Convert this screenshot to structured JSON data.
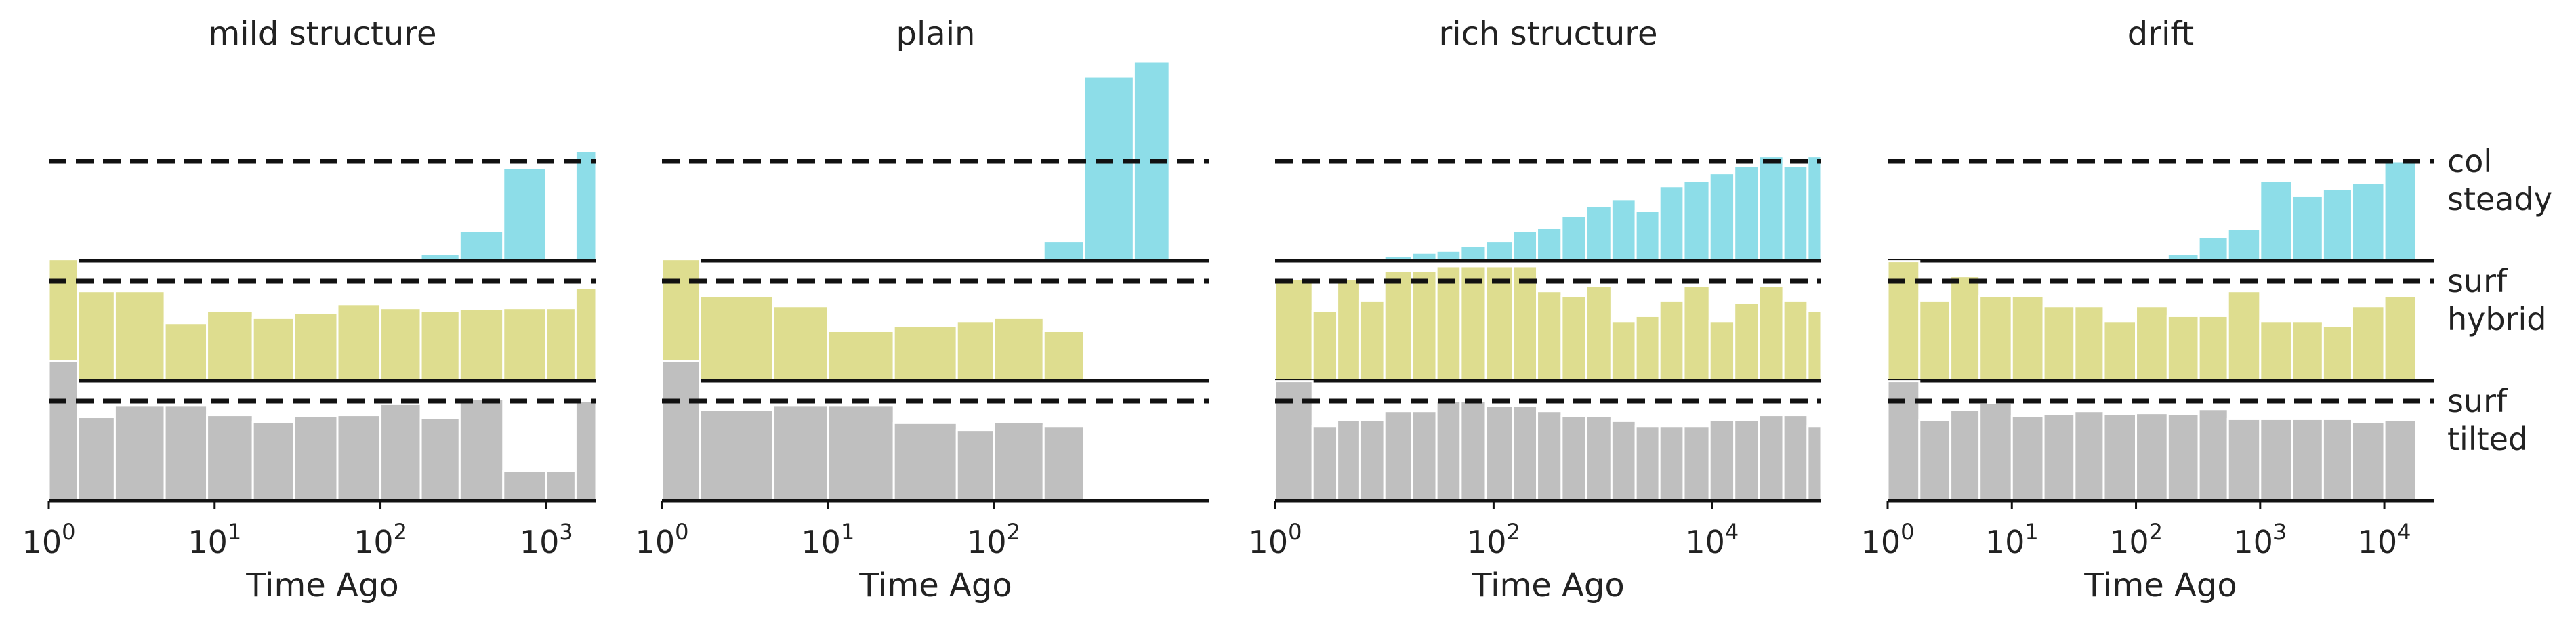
{
  "figure": {
    "row_labels": [
      [
        "col",
        "steady"
      ],
      [
        "surf",
        "hybrid"
      ],
      [
        "surf",
        "tilted"
      ]
    ],
    "colors": {
      "col": "#8ddde8",
      "hybrid": "#dedd8f",
      "tilted": "#bfbfbf",
      "edge": "#ffffff",
      "line": "#111111"
    }
  },
  "chart_data": [
    {
      "type": "area",
      "title": "mild structure",
      "xlabel": "Time Ago",
      "xscale": "log",
      "xlim": [
        1,
        2000
      ],
      "xticks": [
        {
          "base": "10",
          "exp": "0"
        },
        {
          "base": "10",
          "exp": "1"
        },
        {
          "base": "10",
          "exp": "2"
        },
        {
          "base": "10",
          "exp": "3"
        }
      ],
      "grid": false,
      "reference_level": 1.0,
      "edges": [
        1,
        1.5,
        2.5,
        5,
        9,
        17,
        30,
        55,
        100,
        175,
        300,
        550,
        1000,
        1500,
        2000
      ],
      "series": [
        {
          "key": "col",
          "values": [
            null,
            null,
            null,
            null,
            null,
            null,
            null,
            null,
            0.02,
            0.07,
            0.3,
            0.93,
            null,
            1.1
          ]
        },
        {
          "key": "hybrid",
          "values": [
            1.22,
            0.9,
            0.9,
            0.58,
            0.7,
            0.63,
            0.68,
            0.77,
            0.73,
            0.7,
            0.72,
            0.73,
            0.73,
            0.93
          ]
        },
        {
          "key": "tilted",
          "values": [
            1.4,
            0.84,
            0.96,
            0.96,
            0.86,
            0.79,
            0.85,
            0.86,
            0.97,
            0.83,
            1.02,
            0.3,
            0.3,
            1.0
          ]
        }
      ]
    },
    {
      "type": "area",
      "title": "plain",
      "xlabel": "Time Ago",
      "xscale": "log",
      "xlim": [
        1,
        2000
      ],
      "xticks": [
        {
          "base": "10",
          "exp": "0"
        },
        {
          "base": "10",
          "exp": "1"
        },
        {
          "base": "10",
          "exp": "2"
        }
      ],
      "grid": false,
      "reference_level": 1.0,
      "edges": [
        1,
        1.7,
        4.7,
        10,
        25,
        60,
        100,
        200,
        350,
        700,
        1150
      ],
      "series": [
        {
          "key": "col",
          "values": [
            null,
            null,
            null,
            null,
            null,
            null,
            null,
            0.2,
            1.85,
            2.0
          ]
        },
        {
          "key": "hybrid",
          "values": [
            1.22,
            0.85,
            0.75,
            0.5,
            0.55,
            0.6,
            0.63,
            0.5,
            null,
            null
          ]
        },
        {
          "key": "tilted",
          "values": [
            1.4,
            0.91,
            0.96,
            0.96,
            0.78,
            0.71,
            0.79,
            0.75,
            null,
            null
          ]
        }
      ]
    },
    {
      "type": "area",
      "title": "rich structure",
      "xlabel": "Time Ago",
      "xscale": "log",
      "xlim": [
        1,
        100000
      ],
      "xticks": [
        {
          "base": "10",
          "exp": "0"
        },
        {
          "base": "10",
          "exp": "2"
        },
        {
          "base": "10",
          "exp": "4"
        }
      ],
      "grid": false,
      "reference_level": 1.0,
      "edges": [
        1,
        2.2,
        3.7,
        6,
        10,
        18,
        30,
        50,
        85,
        150,
        250,
        420,
        700,
        1200,
        2000,
        3300,
        5500,
        9500,
        16000,
        27000,
        45000,
        75000,
        100000
      ],
      "series": [
        {
          "key": "col",
          "values": [
            null,
            null,
            null,
            null,
            0.05,
            0.08,
            0.1,
            0.15,
            0.2,
            0.3,
            0.33,
            0.45,
            0.55,
            0.62,
            0.5,
            0.75,
            0.8,
            0.88,
            0.95,
            1.05,
            0.95,
            1.05
          ]
        },
        {
          "key": "hybrid",
          "values": [
            1.02,
            0.7,
            1.02,
            0.8,
            1.1,
            1.1,
            1.15,
            1.15,
            1.15,
            1.15,
            0.9,
            0.85,
            0.95,
            0.6,
            0.65,
            0.8,
            0.95,
            0.6,
            0.78,
            0.95,
            0.8,
            0.7
          ]
        },
        {
          "key": "tilted",
          "values": [
            1.2,
            0.75,
            0.81,
            0.81,
            0.9,
            0.9,
            1.0,
            1.0,
            0.95,
            0.95,
            0.9,
            0.85,
            0.85,
            0.8,
            0.75,
            0.75,
            0.75,
            0.81,
            0.81,
            0.86,
            0.86,
            0.75
          ]
        }
      ]
    },
    {
      "type": "area",
      "title": "drift",
      "xlabel": "Time Ago",
      "xscale": "log",
      "xlim": [
        1,
        25000
      ],
      "xticks": [
        {
          "base": "10",
          "exp": "0"
        },
        {
          "base": "10",
          "exp": "1"
        },
        {
          "base": "10",
          "exp": "2"
        },
        {
          "base": "10",
          "exp": "3"
        },
        {
          "base": "10",
          "exp": "4"
        }
      ],
      "grid": false,
      "reference_level": 1.0,
      "edges": [
        1,
        1.8,
        3.2,
        5.5,
        10,
        18,
        32,
        55,
        100,
        180,
        320,
        550,
        1000,
        1800,
        3200,
        5500,
        10000,
        18000
      ],
      "series": [
        {
          "key": "col",
          "values": [
            null,
            null,
            null,
            null,
            null,
            null,
            null,
            null,
            null,
            0.07,
            0.24,
            0.32,
            0.8,
            0.65,
            0.72,
            0.78,
            1.0
          ]
        },
        {
          "key": "hybrid",
          "values": [
            1.2,
            0.8,
            1.05,
            0.85,
            0.85,
            0.75,
            0.75,
            0.6,
            0.75,
            0.65,
            0.65,
            0.9,
            0.6,
            0.6,
            0.55,
            0.75,
            0.85
          ]
        },
        {
          "key": "tilted",
          "values": [
            1.2,
            0.81,
            0.91,
            0.98,
            0.85,
            0.87,
            0.9,
            0.87,
            0.88,
            0.87,
            0.92,
            0.82,
            0.82,
            0.82,
            0.82,
            0.79,
            0.81
          ]
        }
      ]
    }
  ]
}
